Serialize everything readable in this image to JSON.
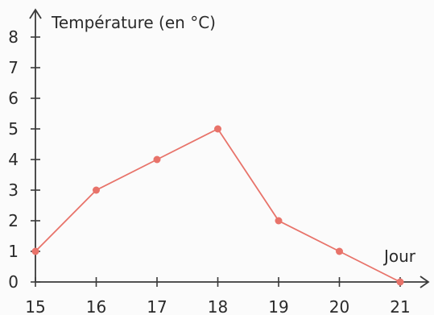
{
  "chart_data": {
    "type": "line",
    "ylabel": "Température (en °C)",
    "xlabel": "Jour",
    "x": [
      15,
      16,
      17,
      18,
      19,
      20,
      21
    ],
    "xlim": [
      15,
      21
    ],
    "ylim": [
      0,
      8
    ],
    "x_ticks": [
      "15",
      "16",
      "17",
      "18",
      "19",
      "20",
      "21"
    ],
    "y_ticks": [
      "0",
      "1",
      "2",
      "3",
      "4",
      "5",
      "6",
      "7",
      "8"
    ],
    "series": [
      {
        "values": [
          1,
          3,
          4,
          5,
          2,
          1,
          0
        ],
        "color": "#e8736a"
      }
    ],
    "grid": false,
    "legend": "none"
  }
}
